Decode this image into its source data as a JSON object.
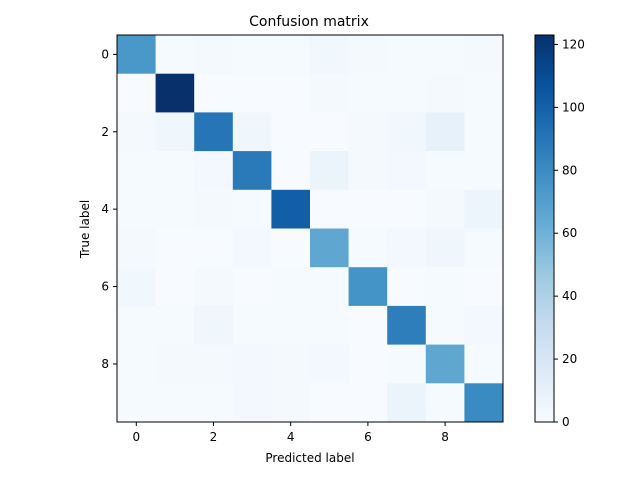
{
  "chart_data": {
    "type": "heatmap",
    "title": "Confusion matrix",
    "xlabel": "Predicted label",
    "ylabel": "True label",
    "x_ticks": [
      0,
      2,
      4,
      6,
      8
    ],
    "y_ticks": [
      0,
      2,
      4,
      6,
      8
    ],
    "classes": [
      0,
      1,
      2,
      3,
      4,
      5,
      6,
      7,
      8,
      9
    ],
    "colormap": "Blues",
    "colorbar": {
      "min": 0,
      "max": 123,
      "ticks": [
        0,
        20,
        40,
        60,
        80,
        100,
        120
      ]
    },
    "matrix": [
      [
        74,
        1,
        2,
        1,
        1,
        4,
        2,
        1,
        1,
        2
      ],
      [
        0,
        123,
        0,
        0,
        0,
        2,
        1,
        1,
        2,
        1
      ],
      [
        2,
        5,
        90,
        5,
        0,
        0,
        2,
        4,
        10,
        1
      ],
      [
        1,
        1,
        3,
        88,
        0,
        7,
        2,
        3,
        1,
        1
      ],
      [
        1,
        1,
        2,
        1,
        101,
        0,
        0,
        0,
        2,
        6
      ],
      [
        2,
        0,
        0,
        3,
        0,
        66,
        1,
        3,
        5,
        1
      ],
      [
        4,
        0,
        2,
        0,
        1,
        1,
        76,
        0,
        1,
        0
      ],
      [
        1,
        1,
        5,
        1,
        1,
        1,
        0,
        86,
        1,
        3
      ],
      [
        1,
        2,
        2,
        3,
        2,
        3,
        0,
        1,
        66,
        1
      ],
      [
        1,
        1,
        1,
        3,
        2,
        0,
        0,
        7,
        1,
        80
      ]
    ]
  }
}
